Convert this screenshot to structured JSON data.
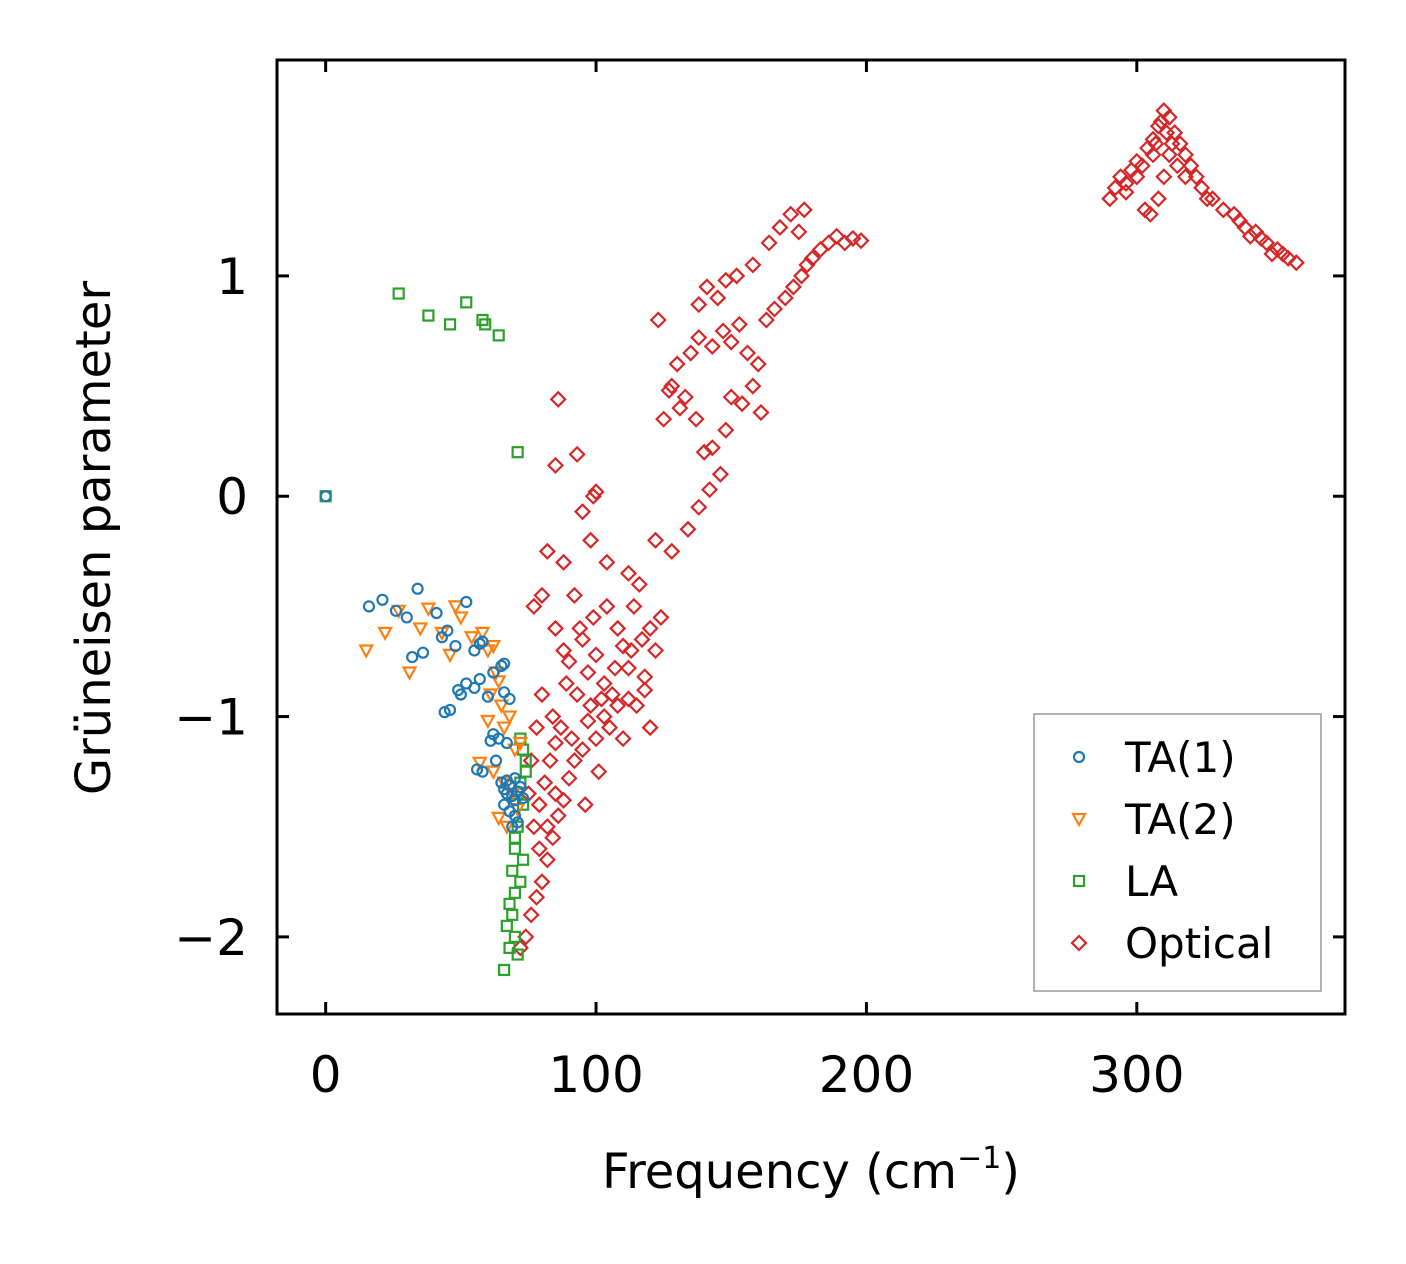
{
  "chart_data": {
    "type": "scatter",
    "title": "",
    "xlabel": "Frequency (cm",
    "xlabel_sup": "−1",
    "xlabel_end": ")",
    "ylabel": "Grüneisen parameter",
    "xlim": [
      -18,
      377
    ],
    "ylim": [
      -2.35,
      1.98
    ],
    "xticks": [
      0,
      100,
      200,
      300
    ],
    "xtick_labels": [
      "0",
      "100",
      "200",
      "300"
    ],
    "yticks": [
      -2,
      -1,
      0,
      1
    ],
    "ytick_labels": [
      "−2",
      "−1",
      "0",
      "1"
    ],
    "legend_position": "lower-right",
    "series": [
      {
        "name": "TA(1)",
        "marker": "circle",
        "color": "#1f77b4",
        "points": [
          [
            0,
            0
          ],
          [
            16,
            -0.5
          ],
          [
            21,
            -0.47
          ],
          [
            26,
            -0.52
          ],
          [
            30,
            -0.55
          ],
          [
            34,
            -0.42
          ],
          [
            32,
            -0.73
          ],
          [
            36,
            -0.71
          ],
          [
            41,
            -0.53
          ],
          [
            43,
            -0.64
          ],
          [
            45,
            -0.61
          ],
          [
            48,
            -0.68
          ],
          [
            52,
            -0.48
          ],
          [
            55,
            -0.7
          ],
          [
            57,
            -0.67
          ],
          [
            58,
            -0.66
          ],
          [
            62,
            -0.8
          ],
          [
            65,
            -0.77
          ],
          [
            66,
            -0.76
          ],
          [
            44,
            -0.98
          ],
          [
            46,
            -0.97
          ],
          [
            49,
            -0.88
          ],
          [
            50,
            -0.9
          ],
          [
            52,
            -0.85
          ],
          [
            55,
            -0.87
          ],
          [
            57,
            -0.83
          ],
          [
            60,
            -0.91
          ],
          [
            66,
            -0.89
          ],
          [
            68,
            -0.92
          ],
          [
            62,
            -1.08
          ],
          [
            64,
            -1.1
          ],
          [
            61,
            -1.11
          ],
          [
            67,
            -1.12
          ],
          [
            63,
            -1.2
          ],
          [
            56,
            -1.24
          ],
          [
            58,
            -1.25
          ],
          [
            65,
            -1.3
          ],
          [
            66,
            -1.33
          ],
          [
            67,
            -1.35
          ],
          [
            68,
            -1.31
          ],
          [
            69,
            -1.36
          ],
          [
            70,
            -1.38
          ],
          [
            71,
            -1.34
          ],
          [
            72,
            -1.32
          ],
          [
            66,
            -1.4
          ],
          [
            68,
            -1.43
          ],
          [
            70,
            -1.45
          ],
          [
            69,
            -1.5
          ],
          [
            71,
            -1.48
          ],
          [
            73,
            -1.37
          ],
          [
            67,
            -1.29
          ],
          [
            70,
            -1.28
          ]
        ]
      },
      {
        "name": "TA(2)",
        "marker": "triangle-down",
        "color": "#ff7f0e",
        "points": [
          [
            15,
            -0.7
          ],
          [
            22,
            -0.62
          ],
          [
            27,
            -0.52
          ],
          [
            31,
            -0.8
          ],
          [
            35,
            -0.6
          ],
          [
            38,
            -0.51
          ],
          [
            43,
            -0.62
          ],
          [
            46,
            -0.72
          ],
          [
            48,
            -0.5
          ],
          [
            50,
            -0.55
          ],
          [
            54,
            -0.64
          ],
          [
            58,
            -0.62
          ],
          [
            60,
            -0.7
          ],
          [
            62,
            -0.68
          ],
          [
            63,
            -0.8
          ],
          [
            64,
            -0.84
          ],
          [
            61,
            -0.9
          ],
          [
            65,
            -0.95
          ],
          [
            60,
            -1.02
          ],
          [
            66,
            -1.05
          ],
          [
            68,
            -1.0
          ],
          [
            70,
            -1.15
          ],
          [
            72,
            -1.12
          ],
          [
            57,
            -1.21
          ],
          [
            62,
            -1.25
          ],
          [
            66,
            -1.3
          ],
          [
            69,
            -1.35
          ],
          [
            71,
            -1.42
          ],
          [
            64,
            -1.46
          ],
          [
            67,
            -1.5
          ]
        ]
      },
      {
        "name": "LA",
        "marker": "square",
        "color": "#2ca02c",
        "points": [
          [
            0,
            0
          ],
          [
            27,
            0.92
          ],
          [
            38,
            0.82
          ],
          [
            46,
            0.78
          ],
          [
            52,
            0.88
          ],
          [
            58,
            0.8
          ],
          [
            59,
            0.78
          ],
          [
            64,
            0.73
          ],
          [
            71,
            0.2
          ],
          [
            72,
            -1.1
          ],
          [
            73,
            -1.15
          ],
          [
            74,
            -1.2
          ],
          [
            72,
            -1.3
          ],
          [
            73,
            -1.4
          ],
          [
            71,
            -1.5
          ],
          [
            70,
            -1.6
          ],
          [
            69,
            -1.7
          ],
          [
            70,
            -1.8
          ],
          [
            69,
            -1.9
          ],
          [
            70,
            -2.0
          ],
          [
            68,
            -2.05
          ],
          [
            71,
            -2.08
          ],
          [
            66,
            -2.15
          ],
          [
            72,
            -1.75
          ],
          [
            74,
            -1.25
          ],
          [
            68,
            -1.85
          ],
          [
            67,
            -1.95
          ],
          [
            73,
            -1.65
          ],
          [
            70,
            -1.55
          ],
          [
            71,
            -1.35
          ]
        ]
      },
      {
        "name": "Optical",
        "marker": "diamond",
        "color": "#d62728",
        "points": [
          [
            86,
            0.44
          ],
          [
            85,
            0.14
          ],
          [
            93,
            0.19
          ],
          [
            95,
            -0.07
          ],
          [
            99,
            -0.0
          ],
          [
            100,
            0.02
          ],
          [
            104,
            -0.3
          ],
          [
            98,
            -0.2
          ],
          [
            82,
            -0.25
          ],
          [
            88,
            -0.3
          ],
          [
            92,
            -0.45
          ],
          [
            77,
            -0.5
          ],
          [
            80,
            -0.45
          ],
          [
            85,
            -0.6
          ],
          [
            88,
            -0.7
          ],
          [
            90,
            -0.75
          ],
          [
            95,
            -0.65
          ],
          [
            97,
            -0.8
          ],
          [
            100,
            -0.72
          ],
          [
            103,
            -0.85
          ],
          [
            106,
            -0.9
          ],
          [
            110,
            -0.68
          ],
          [
            112,
            -0.78
          ],
          [
            115,
            -0.95
          ],
          [
            118,
            -0.82
          ],
          [
            120,
            -0.6
          ],
          [
            122,
            -0.7
          ],
          [
            124,
            -0.55
          ],
          [
            108,
            -0.95
          ],
          [
            105,
            -1.05
          ],
          [
            100,
            -1.1
          ],
          [
            95,
            -1.15
          ],
          [
            92,
            -1.2
          ],
          [
            90,
            -1.28
          ],
          [
            88,
            -1.38
          ],
          [
            86,
            -1.45
          ],
          [
            84,
            -1.55
          ],
          [
            82,
            -1.65
          ],
          [
            80,
            -1.75
          ],
          [
            78,
            -1.82
          ],
          [
            76,
            -1.9
          ],
          [
            74,
            -2.0
          ],
          [
            72,
            -2.05
          ],
          [
            78,
            -1.05
          ],
          [
            80,
            -0.9
          ],
          [
            84,
            -1.0
          ],
          [
            76,
            -1.2
          ],
          [
            75,
            -1.35
          ],
          [
            77,
            -1.5
          ],
          [
            79,
            -1.6
          ],
          [
            96,
            -1.4
          ],
          [
            101,
            -1.25
          ],
          [
            110,
            -1.1
          ],
          [
            120,
            -1.05
          ],
          [
            122,
            -0.2
          ],
          [
            128,
            -0.25
          ],
          [
            134,
            -0.15
          ],
          [
            138,
            -0.05
          ],
          [
            142,
            0.03
          ],
          [
            146,
            0.1
          ],
          [
            140,
            0.2
          ],
          [
            137,
            0.35
          ],
          [
            133,
            0.45
          ],
          [
            127,
            0.48
          ],
          [
            130,
            0.6
          ],
          [
            135,
            0.65
          ],
          [
            138,
            0.72
          ],
          [
            143,
            0.68
          ],
          [
            147,
            0.75
          ],
          [
            150,
            0.7
          ],
          [
            153,
            0.78
          ],
          [
            156,
            0.65
          ],
          [
            160,
            0.6
          ],
          [
            163,
            0.8
          ],
          [
            166,
            0.85
          ],
          [
            170,
            0.9
          ],
          [
            173,
            0.95
          ],
          [
            176,
            1.0
          ],
          [
            178,
            1.05
          ],
          [
            180,
            1.08
          ],
          [
            183,
            1.12
          ],
          [
            186,
            1.15
          ],
          [
            189,
            1.18
          ],
          [
            192,
            1.15
          ],
          [
            195,
            1.17
          ],
          [
            198,
            1.16
          ],
          [
            175,
            1.2
          ],
          [
            177,
            1.3
          ],
          [
            172,
            1.28
          ],
          [
            168,
            1.22
          ],
          [
            164,
            1.15
          ],
          [
            158,
            1.05
          ],
          [
            152,
            1.0
          ],
          [
            148,
            0.98
          ],
          [
            145,
            0.9
          ],
          [
            141,
            0.95
          ],
          [
            138,
            0.87
          ],
          [
            150,
            0.45
          ],
          [
            154,
            0.42
          ],
          [
            158,
            0.5
          ],
          [
            161,
            0.38
          ],
          [
            148,
            0.3
          ],
          [
            143,
            0.22
          ],
          [
            123,
            0.8
          ],
          [
            128,
            0.5
          ],
          [
            131,
            0.4
          ],
          [
            125,
            0.35
          ],
          [
            112,
            -0.35
          ],
          [
            116,
            -0.4
          ],
          [
            104,
            -0.5
          ],
          [
            99,
            -0.55
          ],
          [
            94,
            -0.6
          ],
          [
            114,
            -0.5
          ],
          [
            108,
            -0.6
          ],
          [
            118,
            -0.88
          ],
          [
            112,
            -0.92
          ],
          [
            103,
            -1.0
          ],
          [
            98,
            -0.95
          ],
          [
            93,
            -0.9
          ],
          [
            89,
            -0.85
          ],
          [
            87,
            -1.05
          ],
          [
            85,
            -1.12
          ],
          [
            83,
            -1.2
          ],
          [
            81,
            -1.3
          ],
          [
            79,
            -1.4
          ],
          [
            82,
            -1.5
          ],
          [
            85,
            -1.35
          ],
          [
            91,
            -1.1
          ],
          [
            97,
            -1.02
          ],
          [
            102,
            -0.92
          ],
          [
            107,
            -0.78
          ],
          [
            113,
            -0.7
          ],
          [
            117,
            -0.65
          ],
          [
            290,
            1.35
          ],
          [
            292,
            1.4
          ],
          [
            294,
            1.45
          ],
          [
            296,
            1.42
          ],
          [
            298,
            1.48
          ],
          [
            300,
            1.52
          ],
          [
            302,
            1.5
          ],
          [
            304,
            1.58
          ],
          [
            306,
            1.62
          ],
          [
            308,
            1.68
          ],
          [
            310,
            1.75
          ],
          [
            312,
            1.72
          ],
          [
            314,
            1.65
          ],
          [
            316,
            1.6
          ],
          [
            318,
            1.55
          ],
          [
            320,
            1.5
          ],
          [
            322,
            1.45
          ],
          [
            324,
            1.4
          ],
          [
            326,
            1.35
          ],
          [
            303,
            1.3
          ],
          [
            305,
            1.28
          ],
          [
            308,
            1.35
          ],
          [
            310,
            1.45
          ],
          [
            312,
            1.55
          ],
          [
            306,
            1.55
          ],
          [
            300,
            1.45
          ],
          [
            296,
            1.38
          ],
          [
            315,
            1.5
          ],
          [
            318,
            1.45
          ],
          [
            328,
            1.35
          ],
          [
            332,
            1.3
          ],
          [
            336,
            1.28
          ],
          [
            340,
            1.22
          ],
          [
            344,
            1.2
          ],
          [
            348,
            1.15
          ],
          [
            352,
            1.12
          ],
          [
            356,
            1.08
          ],
          [
            359,
            1.06
          ],
          [
            338,
            1.25
          ],
          [
            342,
            1.18
          ],
          [
            346,
            1.17
          ],
          [
            350,
            1.1
          ],
          [
            354,
            1.1
          ],
          [
            309,
            1.7
          ],
          [
            311,
            1.65
          ],
          [
            307,
            1.6
          ],
          [
            313,
            1.6
          ]
        ]
      }
    ]
  }
}
